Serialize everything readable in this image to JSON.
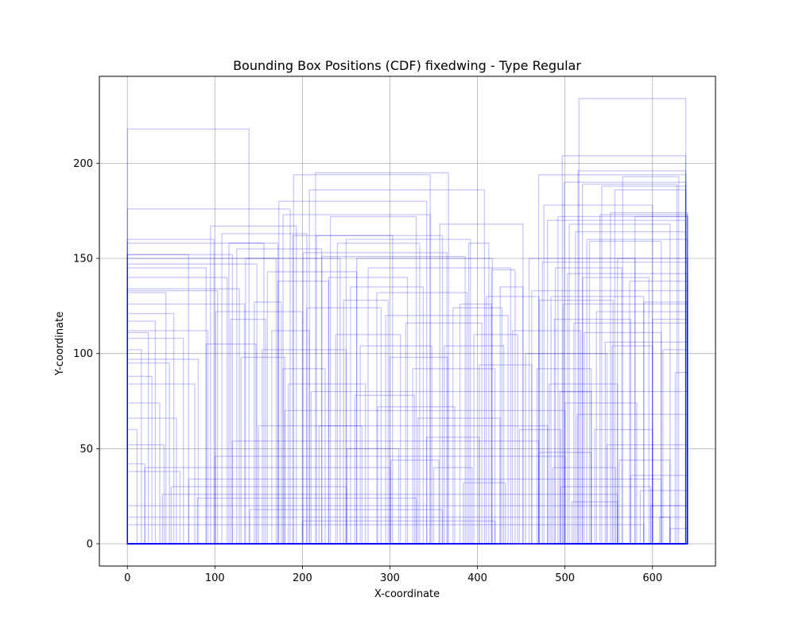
{
  "chart_data": {
    "type": "rectangles",
    "title": "Bounding Box Positions (CDF) fixedwing - Type Regular",
    "xlabel": "X-coordinate",
    "ylabel": "Y-coordinate",
    "xlim": [
      -32,
      672
    ],
    "ylim": [
      -11.7,
      245.7
    ],
    "xticks": [
      0,
      100,
      200,
      300,
      400,
      500,
      600
    ],
    "yticks": [
      0,
      50,
      100,
      150,
      200
    ],
    "grid": true,
    "color": "#0000ff",
    "boxes": [
      [
        0,
        0,
        139,
        218
      ],
      [
        0,
        0,
        186,
        176
      ],
      [
        0,
        0,
        99,
        160
      ],
      [
        0,
        0,
        70,
        152
      ],
      [
        0,
        0,
        90,
        145
      ],
      [
        0,
        0,
        44,
        132
      ],
      [
        0,
        0,
        53,
        121
      ],
      [
        0,
        0,
        32,
        117
      ],
      [
        0,
        0,
        24,
        111
      ],
      [
        0,
        0,
        16,
        102
      ],
      [
        0,
        0,
        48,
        95
      ],
      [
        0,
        0,
        28,
        88
      ],
      [
        0,
        0,
        37,
        74
      ],
      [
        0,
        0,
        11,
        60
      ],
      [
        0,
        0,
        56,
        66
      ],
      [
        0,
        0,
        64,
        108
      ],
      [
        0,
        0,
        81,
        97
      ],
      [
        0,
        0,
        103,
        133
      ],
      [
        0,
        0,
        120,
        152
      ],
      [
        0,
        0,
        156,
        158
      ],
      [
        0,
        0,
        170,
        150
      ],
      [
        0,
        0,
        114,
        140
      ],
      [
        0,
        0,
        134,
        126
      ],
      [
        0,
        0,
        77,
        84
      ],
      [
        0,
        0,
        42,
        52
      ],
      [
        0,
        0,
        20,
        42
      ],
      [
        0,
        0,
        60,
        38
      ],
      [
        0,
        0,
        92,
        112
      ],
      [
        0,
        0,
        148,
        147
      ],
      [
        0,
        0,
        128,
        134
      ],
      [
        95,
        0,
        193,
        167
      ],
      [
        108,
        0,
        205,
        163
      ],
      [
        116,
        0,
        172,
        158
      ],
      [
        125,
        0,
        222,
        155
      ],
      [
        135,
        0,
        243,
        150
      ],
      [
        145,
        0,
        176,
        127
      ],
      [
        101,
        0,
        200,
        122
      ],
      [
        118,
        0,
        158,
        118
      ],
      [
        90,
        0,
        147,
        105
      ],
      [
        130,
        0,
        180,
        98
      ],
      [
        160,
        0,
        262,
        143
      ],
      [
        172,
        0,
        230,
        138
      ],
      [
        165,
        0,
        208,
        112
      ],
      [
        154,
        0,
        250,
        102
      ],
      [
        178,
        0,
        226,
        92
      ],
      [
        173,
        0,
        342,
        180
      ],
      [
        190,
        0,
        346,
        194
      ],
      [
        215,
        0,
        367,
        195
      ],
      [
        208,
        0,
        408,
        186
      ],
      [
        232,
        0,
        330,
        172
      ],
      [
        178,
        0,
        346,
        173
      ],
      [
        189,
        0,
        303,
        162
      ],
      [
        216,
        0,
        360,
        162
      ],
      [
        240,
        0,
        334,
        158
      ],
      [
        250,
        0,
        392,
        160
      ],
      [
        201,
        0,
        365,
        153
      ],
      [
        222,
        0,
        386,
        151
      ],
      [
        262,
        0,
        417,
        150
      ],
      [
        275,
        0,
        438,
        145
      ],
      [
        230,
        0,
        320,
        140
      ],
      [
        255,
        0,
        338,
        135
      ],
      [
        247,
        0,
        298,
        128
      ],
      [
        285,
        0,
        388,
        132
      ],
      [
        295,
        0,
        435,
        120
      ],
      [
        318,
        0,
        405,
        116
      ],
      [
        205,
        0,
        290,
        124
      ],
      [
        238,
        0,
        312,
        110
      ],
      [
        266,
        0,
        348,
        104
      ],
      [
        300,
        0,
        366,
        98
      ],
      [
        326,
        0,
        420,
        92
      ],
      [
        184,
        0,
        272,
        84
      ],
      [
        260,
        0,
        328,
        78
      ],
      [
        286,
        0,
        374,
        72
      ],
      [
        332,
        0,
        426,
        66
      ],
      [
        342,
        0,
        402,
        56
      ],
      [
        219,
        0,
        268,
        62
      ],
      [
        251,
        0,
        310,
        50
      ],
      [
        301,
        0,
        356,
        44
      ],
      [
        350,
        0,
        394,
        40
      ],
      [
        384,
        0,
        432,
        32
      ],
      [
        380,
        0,
        416,
        126
      ],
      [
        372,
        0,
        428,
        124
      ],
      [
        396,
        0,
        446,
        110
      ],
      [
        410,
        0,
        470,
        130
      ],
      [
        357,
        0,
        452,
        168
      ],
      [
        390,
        0,
        413,
        158
      ],
      [
        416,
        0,
        443,
        144
      ],
      [
        426,
        0,
        452,
        135
      ],
      [
        362,
        0,
        430,
        104
      ],
      [
        402,
        0,
        462,
        94
      ],
      [
        470,
        0,
        638,
        194
      ],
      [
        480,
        0,
        638,
        170
      ],
      [
        497,
        0,
        638,
        204
      ],
      [
        516,
        0,
        638,
        234
      ],
      [
        499,
        0,
        638,
        190
      ],
      [
        515,
        0,
        638,
        196
      ],
      [
        520,
        0,
        628,
        189
      ],
      [
        542,
        0,
        638,
        188
      ],
      [
        557,
        0,
        638,
        186
      ],
      [
        566,
        0,
        630,
        193
      ],
      [
        476,
        0,
        600,
        178
      ],
      [
        492,
        0,
        640,
        172
      ],
      [
        505,
        0,
        620,
        168
      ],
      [
        512,
        0,
        638,
        164
      ],
      [
        528,
        0,
        610,
        159
      ],
      [
        459,
        0,
        580,
        150
      ],
      [
        474,
        0,
        640,
        148
      ],
      [
        489,
        0,
        565,
        145
      ],
      [
        503,
        0,
        640,
        142
      ],
      [
        520,
        0,
        596,
        140
      ],
      [
        484,
        0,
        590,
        130
      ],
      [
        462,
        0,
        640,
        133
      ],
      [
        471,
        0,
        555,
        128
      ],
      [
        498,
        0,
        640,
        126
      ],
      [
        536,
        0,
        640,
        122
      ],
      [
        488,
        0,
        575,
        118
      ],
      [
        510,
        0,
        640,
        116
      ],
      [
        522,
        0,
        610,
        111
      ],
      [
        546,
        0,
        640,
        106
      ],
      [
        554,
        0,
        600,
        104
      ],
      [
        440,
        0,
        518,
        112
      ],
      [
        455,
        0,
        548,
        100
      ],
      [
        468,
        0,
        530,
        92
      ],
      [
        482,
        0,
        560,
        84
      ],
      [
        494,
        0,
        640,
        80
      ],
      [
        500,
        0,
        582,
        74
      ],
      [
        514,
        0,
        640,
        68
      ],
      [
        534,
        0,
        600,
        60
      ],
      [
        548,
        0,
        640,
        52
      ],
      [
        562,
        0,
        620,
        44
      ],
      [
        575,
        0,
        640,
        36
      ],
      [
        586,
        0,
        640,
        28
      ],
      [
        598,
        0,
        640,
        20
      ],
      [
        608,
        0,
        640,
        14
      ],
      [
        620,
        0,
        640,
        8
      ],
      [
        448,
        0,
        495,
        60
      ],
      [
        470,
        0,
        530,
        48
      ],
      [
        486,
        0,
        558,
        40
      ],
      [
        495,
        0,
        598,
        30
      ],
      [
        508,
        0,
        560,
        22
      ],
      [
        525,
        0,
        640,
        160
      ],
      [
        540,
        0,
        640,
        173
      ],
      [
        552,
        0,
        640,
        174
      ],
      [
        560,
        0,
        640,
        150
      ],
      [
        574,
        0,
        640,
        138
      ],
      [
        580,
        0,
        640,
        172
      ],
      [
        590,
        0,
        640,
        127
      ],
      [
        600,
        0,
        640,
        118
      ],
      [
        612,
        0,
        640,
        102
      ],
      [
        626,
        0,
        640,
        90
      ],
      [
        0,
        0,
        640,
        20
      ],
      [
        0,
        0,
        620,
        14
      ],
      [
        0,
        0,
        590,
        10
      ],
      [
        40,
        0,
        560,
        26
      ],
      [
        70,
        0,
        610,
        34
      ],
      [
        100,
        0,
        500,
        46
      ],
      [
        120,
        0,
        470,
        54
      ],
      [
        150,
        0,
        480,
        62
      ],
      [
        180,
        0,
        500,
        70
      ],
      [
        210,
        0,
        530,
        80
      ],
      [
        20,
        0,
        300,
        40
      ],
      [
        50,
        0,
        250,
        30
      ],
      [
        80,
        0,
        330,
        24
      ],
      [
        140,
        0,
        360,
        18
      ],
      [
        200,
        0,
        420,
        12
      ]
    ]
  }
}
